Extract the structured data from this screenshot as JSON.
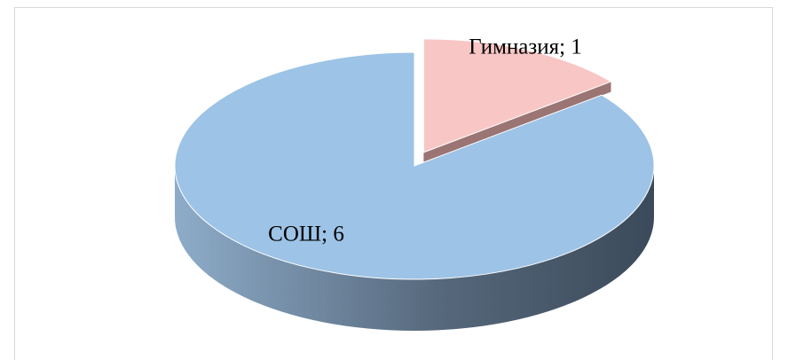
{
  "chart_data": {
    "type": "pie",
    "values": [
      1,
      6
    ],
    "value_labels": [
      "Гимназия; 1",
      "СОШ; 6"
    ],
    "colors": [
      "#f9c6c6",
      "#9dc3e6"
    ],
    "side_colors": [
      "#9b7474",
      "#44566a"
    ],
    "style": "3d",
    "start_angle": -90,
    "explode": [
      1,
      0
    ]
  }
}
